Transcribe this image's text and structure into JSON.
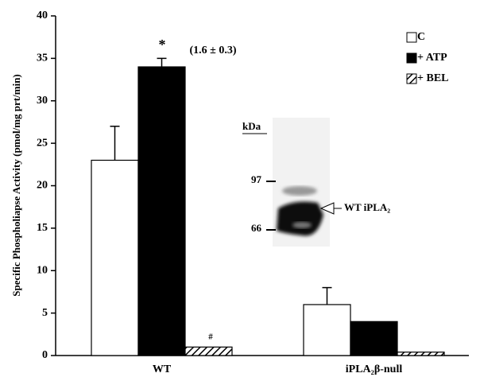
{
  "chart_data": {
    "type": "bar",
    "y_label": "Specific Phospholiapse Activity (pmol/mg prt/min)",
    "categories": [
      "WT",
      "iPLA₂β-null"
    ],
    "series": [
      {
        "name": "C",
        "color": "#ffffff",
        "values": [
          23,
          6
        ],
        "errors": [
          4,
          2
        ]
      },
      {
        "name": "+ ATP",
        "color": "#000000",
        "values": [
          34,
          4
        ],
        "errors": [
          1,
          null
        ]
      },
      {
        "name": "+ BEL",
        "color": "#000000",
        "pattern": "hatch",
        "values": [
          1,
          0.4
        ],
        "errors": [
          null,
          null
        ]
      }
    ],
    "ylim": [
      0,
      40
    ],
    "yticks": [
      0,
      5,
      10,
      15,
      20,
      25,
      30,
      35,
      40
    ],
    "legend": "top-right",
    "annotations": [
      "*",
      "(1.6 ± 0.3)",
      "#"
    ],
    "inset": {
      "unit": "kDa",
      "markers": [
        "97",
        "66"
      ],
      "band_label": "WT iPLA₂"
    }
  }
}
